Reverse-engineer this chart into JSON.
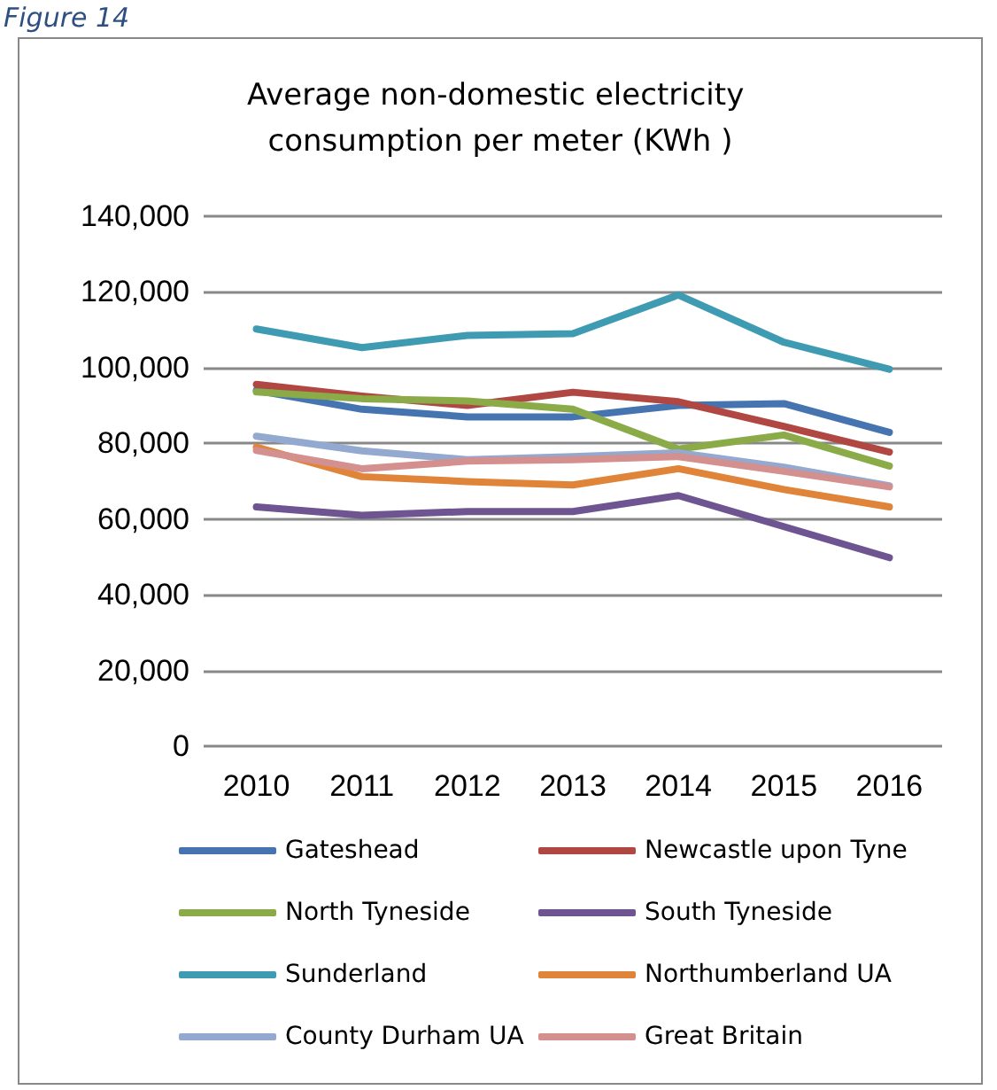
{
  "chart_data": {
    "type": "line",
    "title": "Average non-domestic electricity consumption per meter (KWh )",
    "annotations": [
      "Figure 14"
    ],
    "categories": [
      "2010",
      "2011",
      "2012",
      "2013",
      "2014",
      "2015",
      "2016"
    ],
    "series": [
      {
        "name": "Gateshead",
        "color": "#4674b0",
        "values": [
          94000,
          89000,
          87000,
          87000,
          90000,
          90500,
          82900
        ]
      },
      {
        "name": "Newcastle upon Tyne",
        "color": "#b04743",
        "values": [
          95600,
          92500,
          90000,
          93500,
          91000,
          84500,
          77700
        ]
      },
      {
        "name": "North Tyneside",
        "color": "#8aab47",
        "values": [
          93600,
          91800,
          91200,
          89000,
          78500,
          82200,
          74000
        ]
      },
      {
        "name": "South Tyneside",
        "color": "#6e5491",
        "values": [
          63200,
          61000,
          62000,
          62000,
          66200,
          58000,
          49800
        ]
      },
      {
        "name": "Sunderland",
        "color": "#3e9bb2",
        "values": [
          110200,
          105300,
          108500,
          109000,
          119200,
          106700,
          99600
        ]
      },
      {
        "name": "Northumberland UA",
        "color": "#e0843a",
        "values": [
          79000,
          71200,
          69900,
          69000,
          73300,
          67800,
          63200
        ]
      },
      {
        "name": "County Durham UA",
        "color": "#93a9d0",
        "values": [
          81900,
          78000,
          75700,
          76500,
          77500,
          73700,
          68800
        ]
      },
      {
        "name": "Great Britain",
        "color": "#d48f8f",
        "values": [
          78100,
          73300,
          75300,
          75700,
          76500,
          72600,
          68500
        ]
      }
    ],
    "ylim": [
      0,
      140000
    ],
    "yticks": [
      0,
      {
        "value": 20000,
        "label": "20,000"
      },
      {
        "value": 40000,
        "label": "40,000"
      },
      {
        "value": 60000,
        "label": "60,000"
      },
      {
        "value": 80000,
        "label": "80,000"
      },
      {
        "value": 100000,
        "label": "100,000"
      },
      {
        "value": 120000,
        "label": "120,000"
      },
      {
        "value": 140000,
        "label": "140,000"
      }
    ],
    "grid": "y",
    "legend": "bottom",
    "marker": "none",
    "line_style": "solid"
  }
}
